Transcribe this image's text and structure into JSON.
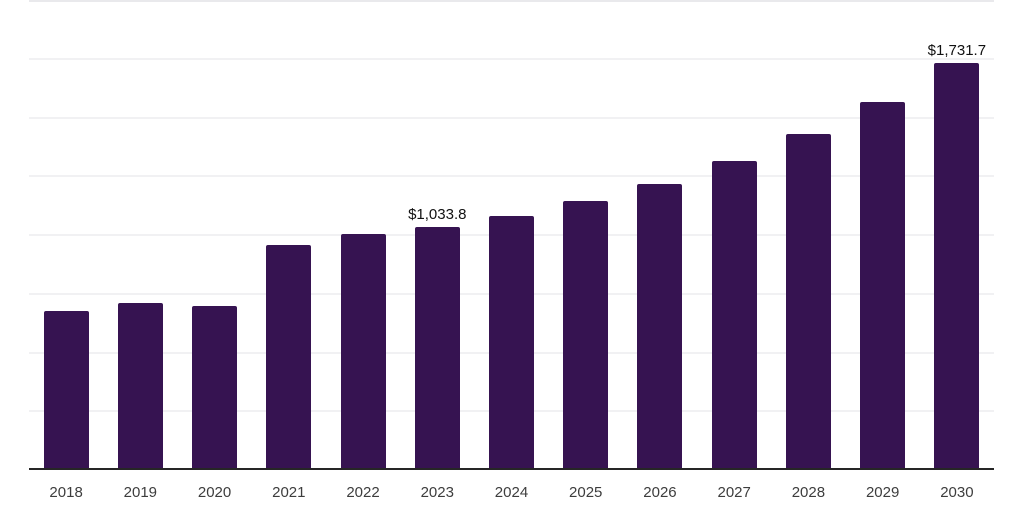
{
  "chart_data": {
    "type": "bar",
    "title": "",
    "xlabel": "",
    "ylabel": "",
    "categories": [
      "2018",
      "2019",
      "2020",
      "2021",
      "2022",
      "2023",
      "2024",
      "2025",
      "2026",
      "2027",
      "2028",
      "2029",
      "2030"
    ],
    "values": [
      675,
      712,
      698,
      956,
      1003,
      1033.8,
      1081,
      1145,
      1216,
      1315,
      1429,
      1566,
      1731.7
    ],
    "point_labels": [
      "",
      "",
      "",
      "",
      "",
      "$1,033.8",
      "",
      "",
      "",
      "",
      "",
      "",
      "$1,731.7"
    ],
    "ylim": [
      0,
      2000
    ],
    "gridline_step": 250,
    "grid": "horizontal-only",
    "legend_position": "none",
    "y_axis_tick_labels_visible": false,
    "colors": {
      "bar": "#361351",
      "axis_line": "#262626",
      "gridline": "#f1f1f3",
      "top_gridline": "#e9e9ec",
      "data_label_text": "#111111",
      "tick_label_text": "#3d3d3d",
      "background": "#ffffff"
    }
  }
}
